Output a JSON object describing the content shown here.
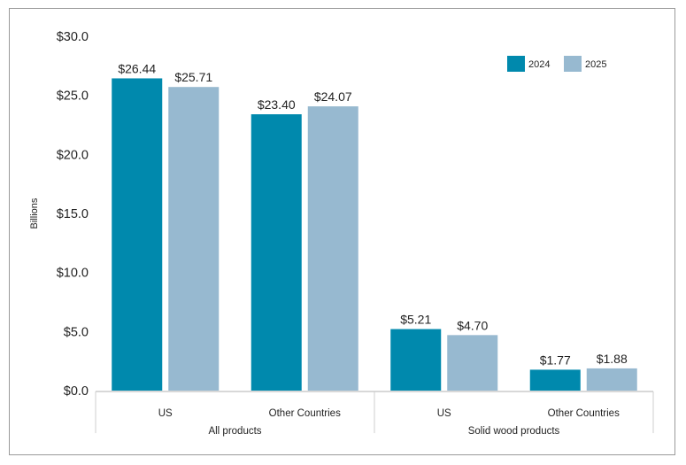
{
  "chart_data": {
    "type": "bar",
    "ylabel": "Billions",
    "ylim": [
      0,
      30
    ],
    "yticks": [
      "$0.0",
      "$5.0",
      "$10.0",
      "$15.0",
      "$20.0",
      "$25.0",
      "$30.0"
    ],
    "groups": [
      {
        "name": "All products",
        "categories": [
          "US",
          "Other Countries"
        ]
      },
      {
        "name": "Solid wood products",
        "categories": [
          "US",
          "Other Countries"
        ]
      }
    ],
    "series": [
      {
        "name": "2024",
        "color": "#0089ad",
        "values": [
          26.44,
          23.4,
          5.21,
          1.77
        ],
        "labels": [
          "$26.44",
          "$23.40",
          "$5.21",
          "$1.77"
        ]
      },
      {
        "name": "2025",
        "color": "#97b9d0",
        "values": [
          25.71,
          24.07,
          4.7,
          1.88
        ],
        "labels": [
          "$25.71",
          "$24.07",
          "$4.70",
          "$1.88"
        ]
      }
    ],
    "legend_position": "top-right",
    "grid": false
  }
}
